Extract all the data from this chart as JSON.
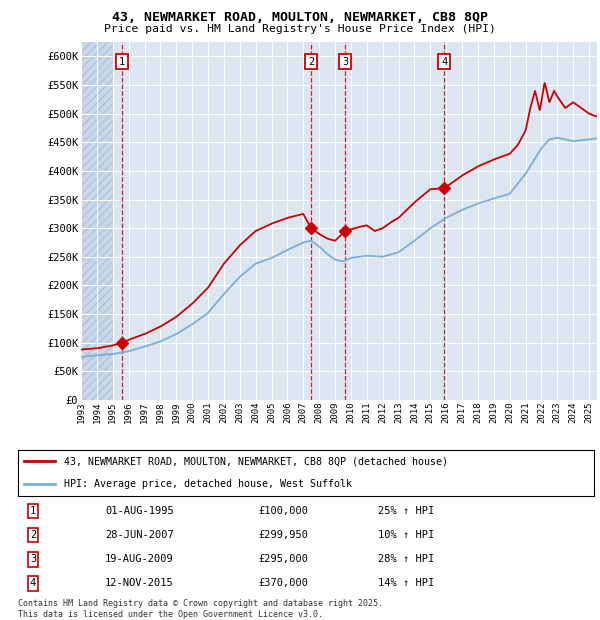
{
  "title1": "43, NEWMARKET ROAD, MOULTON, NEWMARKET, CB8 8QP",
  "title2": "Price paid vs. HM Land Registry's House Price Index (HPI)",
  "background_color": "#dce6f1",
  "red_line_color": "#cc0000",
  "blue_line_color": "#7bafd4",
  "ylim": [
    0,
    625000
  ],
  "yticks": [
    0,
    50000,
    100000,
    150000,
    200000,
    250000,
    300000,
    350000,
    400000,
    450000,
    500000,
    550000,
    600000
  ],
  "ytick_labels": [
    "£0",
    "£50K",
    "£100K",
    "£150K",
    "£200K",
    "£250K",
    "£300K",
    "£350K",
    "£400K",
    "£450K",
    "£500K",
    "£550K",
    "£600K"
  ],
  "sale_dates_num": [
    1995.58,
    2007.49,
    2009.63,
    2015.87
  ],
  "sale_prices": [
    100000,
    299950,
    295000,
    370000
  ],
  "sale_labels": [
    "1",
    "2",
    "3",
    "4"
  ],
  "sale_dates_str": [
    "01-AUG-1995",
    "28-JUN-2007",
    "19-AUG-2009",
    "12-NOV-2015"
  ],
  "sale_prices_str": [
    "£100,000",
    "£299,950",
    "£295,000",
    "£370,000"
  ],
  "sale_hpi_pct": [
    "25% ↑ HPI",
    "10% ↑ HPI",
    "28% ↑ HPI",
    "14% ↑ HPI"
  ],
  "legend_line1": "43, NEWMARKET ROAD, MOULTON, NEWMARKET, CB8 8QP (detached house)",
  "legend_line2": "HPI: Average price, detached house, West Suffolk",
  "footer": "Contains HM Land Registry data © Crown copyright and database right 2025.\nThis data is licensed under the Open Government Licence v3.0.",
  "xlim_start": 1993.0,
  "xlim_end": 2025.5
}
